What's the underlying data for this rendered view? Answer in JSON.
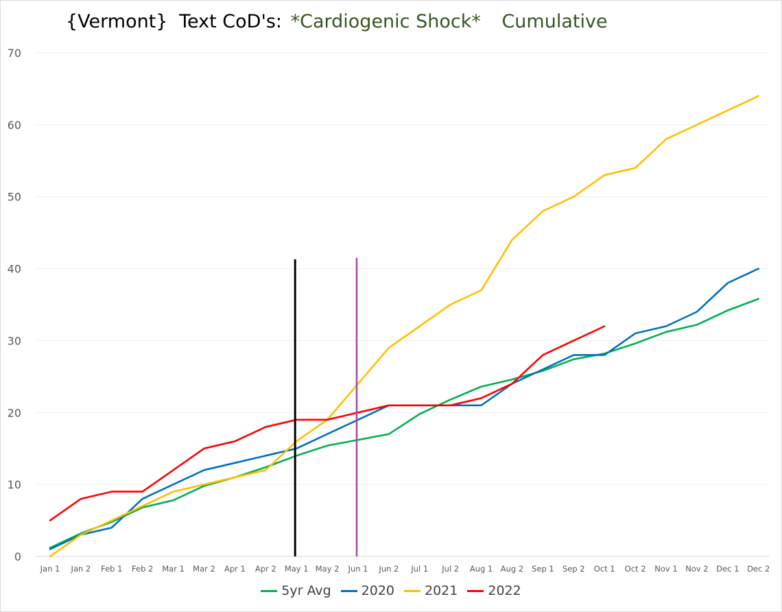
{
  "chart_data": {
    "type": "line",
    "title": {
      "part1": "{Vermont}",
      "part2": "Text CoD's:",
      "part3": "*Cardiogenic Shock*",
      "part4": "Cumulative"
    },
    "xlabel": "",
    "ylabel": "",
    "ylim": [
      0,
      70
    ],
    "yticks": [
      0,
      10,
      20,
      30,
      40,
      50,
      60,
      70
    ],
    "grid": true,
    "legend_position": "bottom",
    "categories": [
      "Jan 1",
      "Jan 2",
      "Feb 1",
      "Feb 2",
      "Mar 1",
      "Mar 2",
      "Apr 1",
      "Apr 2",
      "May 1",
      "May 2",
      "Jun 1",
      "Jun 2",
      "Jul 1",
      "Jul 2",
      "Aug 1",
      "Aug 2",
      "Sep 1",
      "Sep 2",
      "Oct 1",
      "Oct 2",
      "Nov 1",
      "Nov 2",
      "Dec 1",
      "Dec 2"
    ],
    "series": [
      {
        "name": "5yr Avg",
        "color": "#00b050",
        "values": [
          1.2,
          3.2,
          4.8,
          6.8,
          7.8,
          9.8,
          11.0,
          12.4,
          14.0,
          15.4,
          16.2,
          17.0,
          19.8,
          21.8,
          23.6,
          24.6,
          25.8,
          27.4,
          28.2,
          29.6,
          31.2,
          32.2,
          34.2,
          35.8
        ]
      },
      {
        "name": "2020",
        "color": "#0070c0",
        "values": [
          1,
          3,
          4,
          8,
          10,
          12,
          13,
          14,
          15,
          17,
          19,
          21,
          21,
          21,
          21,
          24,
          26,
          28,
          28,
          31,
          32,
          34,
          38,
          40
        ]
      },
      {
        "name": "2021",
        "color": "#ffc000",
        "values": [
          0,
          3,
          5,
          7,
          9,
          10,
          11,
          12,
          16,
          19,
          24,
          29,
          32,
          35,
          37,
          44,
          48,
          50,
          53,
          54,
          58,
          60,
          62,
          64
        ]
      },
      {
        "name": "2022",
        "color": "#ff0000",
        "values": [
          5,
          8,
          9,
          9,
          12,
          15,
          16,
          18,
          19,
          19,
          20,
          21,
          21,
          21,
          22,
          24,
          28,
          30,
          32,
          null,
          null,
          null,
          null,
          null
        ]
      }
    ],
    "reference_lines": [
      {
        "name": "black-marker",
        "category": "May 1",
        "color": "#000000",
        "y_from": 0,
        "y_to": 41.3
      },
      {
        "name": "purple-marker",
        "category": "Jun 1",
        "color": "#a64ca6",
        "y_from": 0,
        "y_to": 41.5
      }
    ]
  }
}
